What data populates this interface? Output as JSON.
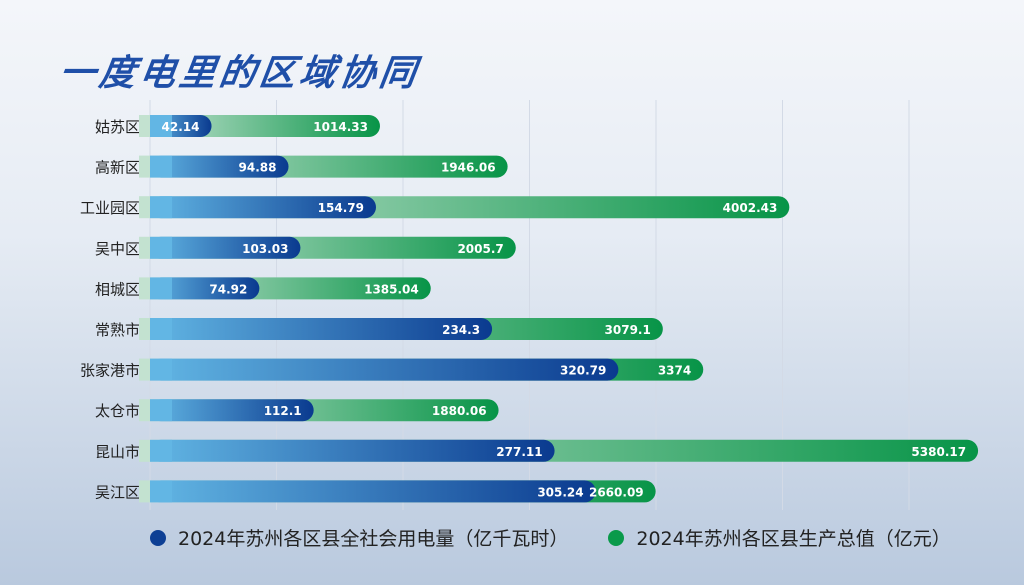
{
  "title": "一度电里的区域协同",
  "chart_data": {
    "type": "bar",
    "orientation": "horizontal",
    "title": "一度电里的区域协同",
    "categories": [
      "姑苏区",
      "高新区",
      "工业园区",
      "吴中区",
      "相城区",
      "常熟市",
      "张家港市",
      "太仓市",
      "昆山市",
      "吴江区"
    ],
    "series": [
      {
        "name": "2024年苏州各区县全社会用电量（亿千瓦时）",
        "color": "#0d3f94",
        "values": [
          42.14,
          94.88,
          154.79,
          103.03,
          74.92,
          234.3,
          320.79,
          112.1,
          277.11,
          305.24
        ]
      },
      {
        "name": "2024年苏州各区县生产总值（亿元）",
        "color": "#0a9a4a",
        "values": [
          1014.33,
          1946.06,
          4002.43,
          2005.7,
          1385.04,
          3079.1,
          3374,
          1880.06,
          5380.17,
          2660.09
        ]
      }
    ],
    "grid": true,
    "legend": "bottom"
  }
}
